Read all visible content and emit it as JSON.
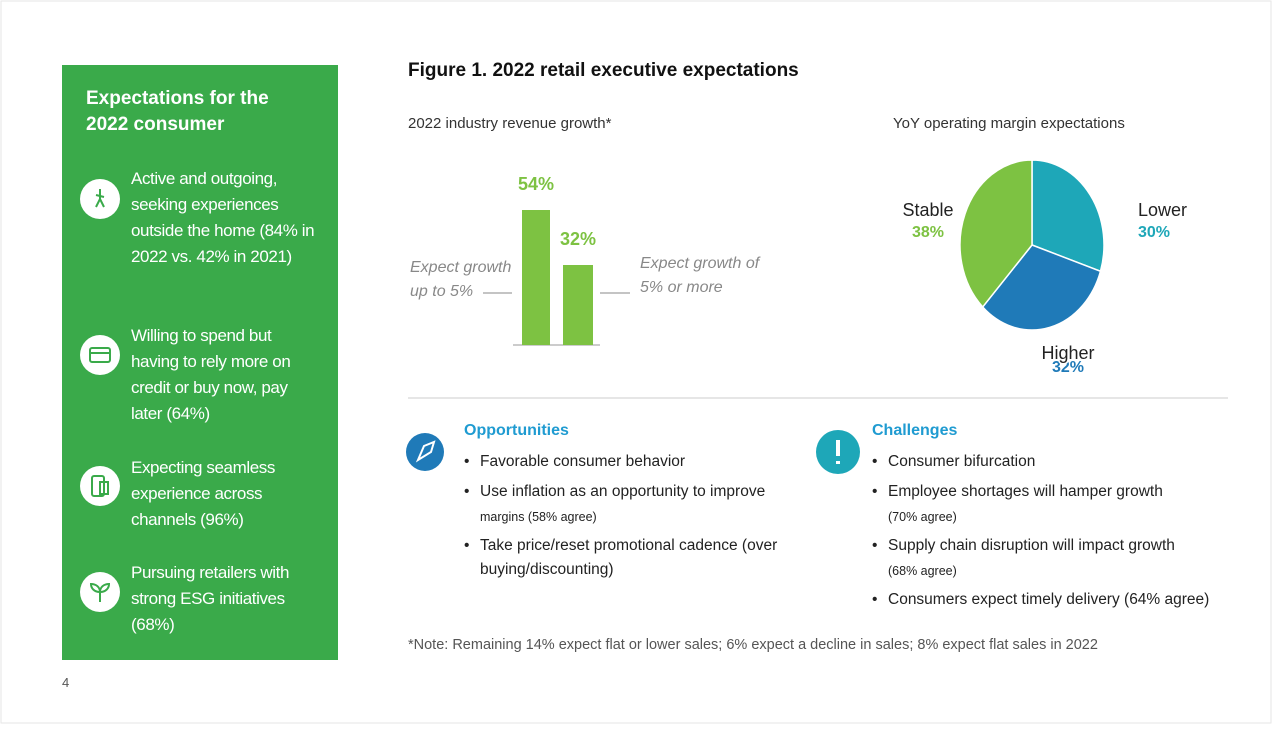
{
  "sidebar": {
    "title": "Expectations for the 2022 consumer",
    "items": [
      "Active and outgoing, seeking experiences outside the home (84% in 2022 vs. 42% in 2021)",
      "Willing to spend but having to rely more on credit or buy now, pay later (64%)",
      "Expecting seamless experience across channels (96%)",
      "Pursuing retailers with strong ESG initiatives (68%)"
    ]
  },
  "figure_title": "Figure 1. 2022 retail executive expectations",
  "chart_data": [
    {
      "type": "bar",
      "title": "2022 industry revenue growth*",
      "categories": [
        "Expect growth up to 5%",
        "Expect growth of 5% or more"
      ],
      "values": [
        54,
        32
      ],
      "value_labels": [
        "54%",
        "32%"
      ],
      "color": "#7dc242"
    },
    {
      "type": "pie",
      "title": "YoY operating margin expectations",
      "categories": [
        "Lower",
        "Higher",
        "Stable"
      ],
      "values": [
        30,
        32,
        38
      ],
      "value_labels": [
        "30%",
        "32%",
        "38%"
      ],
      "colors": [
        "#1ea7b8",
        "#1f7ab8",
        "#7dc242"
      ]
    }
  ],
  "opportunities": {
    "title": "Opportunities",
    "items": [
      {
        "text": "Favorable consumer behavior"
      },
      {
        "text": "Use inflation as an opportunity to improve",
        "detail": "margins (58% agree)"
      },
      {
        "text": "Take price/reset promotional cadence (over buying/discounting)"
      }
    ]
  },
  "challenges": {
    "title": "Challenges",
    "items": [
      {
        "text": "Consumer bifurcation"
      },
      {
        "text": "Employee shortages will hamper growth",
        "detail": "(70% agree)"
      },
      {
        "text": "Supply chain disruption will impact growth",
        "detail": "(68% agree)"
      },
      {
        "text": "Consumers expect timely delivery (64% agree)"
      }
    ]
  },
  "note": "*Note: Remaining 14% expect flat or lower sales; 6% expect a decline in sales; 8% expect flat sales in 2022",
  "page_number": "4"
}
